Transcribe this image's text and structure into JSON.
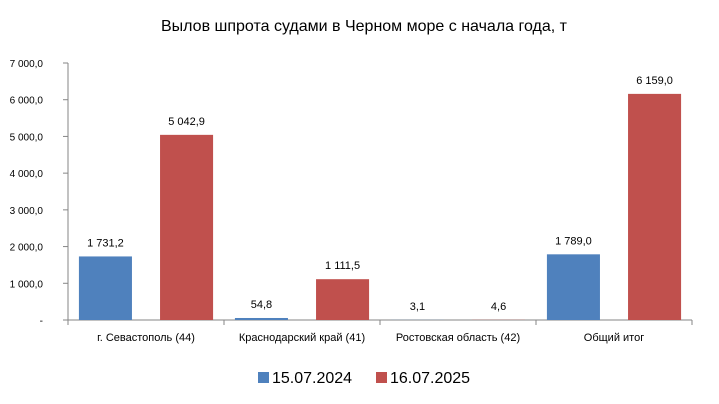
{
  "chart_data": {
    "type": "bar",
    "title": "Вылов шпрота судами в Черном море с начала  года, т",
    "categories": [
      "г. Севастополь (44)",
      "Краснодарский край (41)",
      "Ростовская область (42)",
      "Общий итог"
    ],
    "series": [
      {
        "name": "15.07.2024",
        "color": "#4F81BD",
        "values": [
          1731.2,
          54.8,
          3.1,
          1789.0
        ],
        "labels": [
          "1 731,2",
          "54,8",
          "3,1",
          "1 789,0"
        ]
      },
      {
        "name": "16.07.2025",
        "color": "#C0504D",
        "values": [
          5042.9,
          1111.5,
          4.6,
          6159.0
        ],
        "labels": [
          "5 042,9",
          "1 111,5",
          "4,6",
          "6 159,0"
        ]
      }
    ],
    "ylim": [
      0,
      7000
    ],
    "yticks": [
      0,
      1000,
      2000,
      3000,
      4000,
      5000,
      6000,
      7000
    ],
    "ytick_labels": [
      "-",
      "1 000,0",
      "2 000,0",
      "3 000,0",
      "4 000,0",
      "5 000,0",
      "6 000,0",
      "7 000,0"
    ],
    "xlabel": "",
    "ylabel": "",
    "grid": false,
    "legend_position": "bottom"
  }
}
